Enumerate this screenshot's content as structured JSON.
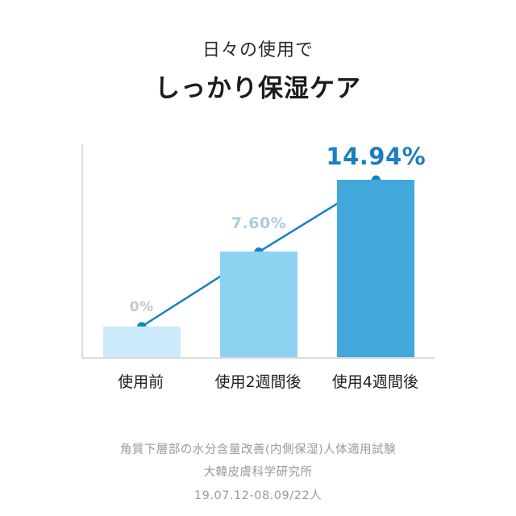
{
  "header": {
    "subtitle": "日々の使用で",
    "title": "しっかり保湿ケア"
  },
  "chart_data": {
    "type": "bar",
    "categories": [
      "使用前",
      "使用2週間後",
      "使用4週間後"
    ],
    "values": [
      0,
      7.6,
      14.94
    ],
    "value_labels": [
      "0%",
      "7.60%",
      "14.94%"
    ],
    "bar_colors": [
      "#cdeafa",
      "#8ed2f1",
      "#42a7da"
    ],
    "label_colors": [
      "#c7c7c7",
      "#aecbdb",
      "#1c7fc2"
    ],
    "line_color": "#1583c5",
    "axis_color": "#dcdcdc",
    "title": "しっかり保湿ケア",
    "xlabel": "",
    "ylabel": "",
    "ylim": [
      0,
      16
    ],
    "grid": false,
    "legend": false
  },
  "footer": {
    "line1": "角質下層部の水分含量改善(内側保湿)人体適用試験",
    "line2": "大韓皮膚科学研究所",
    "line3": "19.07.12-08.09/22人"
  }
}
